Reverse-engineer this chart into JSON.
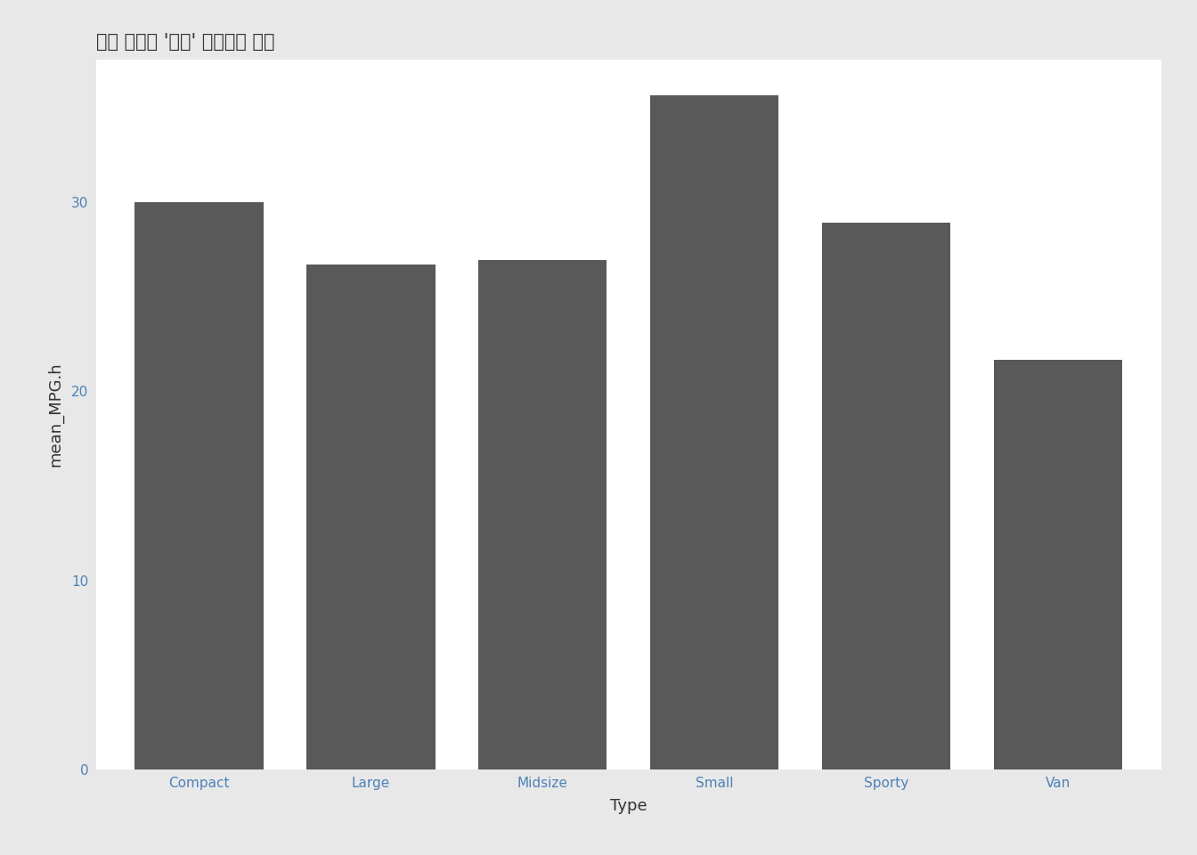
{
  "title": "차량 유형별 '평균' 고속도로 연비",
  "categories": [
    "Compact",
    "Large",
    "Midsize",
    "Small",
    "Sporty",
    "Van"
  ],
  "values": [
    29.97,
    26.69,
    26.92,
    35.61,
    28.89,
    21.64
  ],
  "bar_color": "#595959",
  "outer_background": "#e8e8e8",
  "panel_background": "#e8e8e8",
  "xlabel": "Type",
  "ylabel": "mean_MPG.h",
  "ylim": [
    0,
    37.5
  ],
  "yticks": [
    0,
    10,
    20,
    30
  ],
  "title_fontsize": 15,
  "axis_label_fontsize": 13,
  "tick_label_fontsize": 11,
  "title_color": "#333333",
  "axis_label_color": "#333333",
  "tick_label_color": "#4d82b8",
  "grid_color": "#ffffff",
  "grid_linewidth": 1.2,
  "bar_width": 0.75
}
